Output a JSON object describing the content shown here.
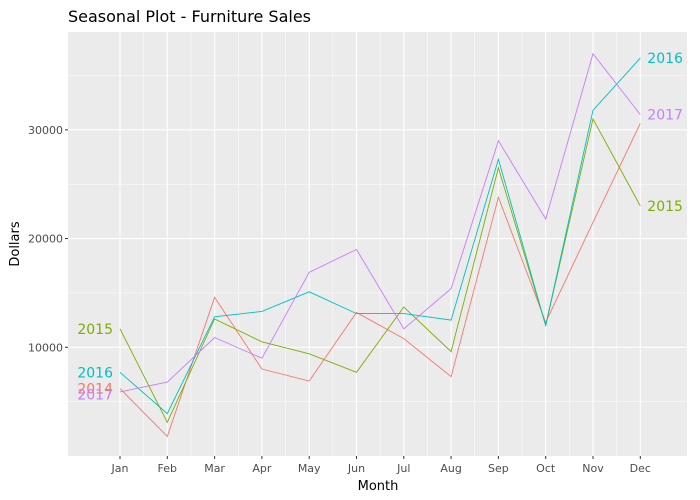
{
  "chart_data": {
    "type": "line",
    "title": "Seasonal Plot - Furniture Sales",
    "xlabel": "Month",
    "ylabel": "Dollars",
    "categories": [
      "Jan",
      "Feb",
      "Mar",
      "Apr",
      "May",
      "Jun",
      "Jul",
      "Aug",
      "Sep",
      "Oct",
      "Nov",
      "Dec"
    ],
    "ylim": [
      0,
      39000
    ],
    "yticks": [
      10000,
      20000,
      30000
    ],
    "ytick_labels": [
      "10000",
      "20000",
      "30000"
    ],
    "grid": true,
    "legend": "none",
    "series": [
      {
        "name": "2014",
        "color": "#F8766D",
        "label_side": "start",
        "values": [
          6200,
          1800,
          14600,
          8000,
          6900,
          13200,
          10800,
          7300,
          23800,
          12300,
          21500,
          30600
        ]
      },
      {
        "name": "2015",
        "color": "#7CAE00",
        "label_side": "both",
        "values": [
          11700,
          3100,
          12600,
          10500,
          9400,
          7700,
          13700,
          9600,
          26500,
          12000,
          31000,
          23000
        ]
      },
      {
        "name": "2016",
        "color": "#00BFC4",
        "label_side": "both",
        "values": [
          7700,
          3900,
          12800,
          13300,
          15100,
          13100,
          13100,
          12500,
          27300,
          12000,
          31800,
          36600
        ]
      },
      {
        "name": "2017",
        "color": "#C77CFF",
        "label_side": "both",
        "values": [
          5900,
          6800,
          10900,
          9000,
          16900,
          19000,
          11700,
          15400,
          29000,
          21800,
          37000,
          31400
        ]
      }
    ]
  }
}
